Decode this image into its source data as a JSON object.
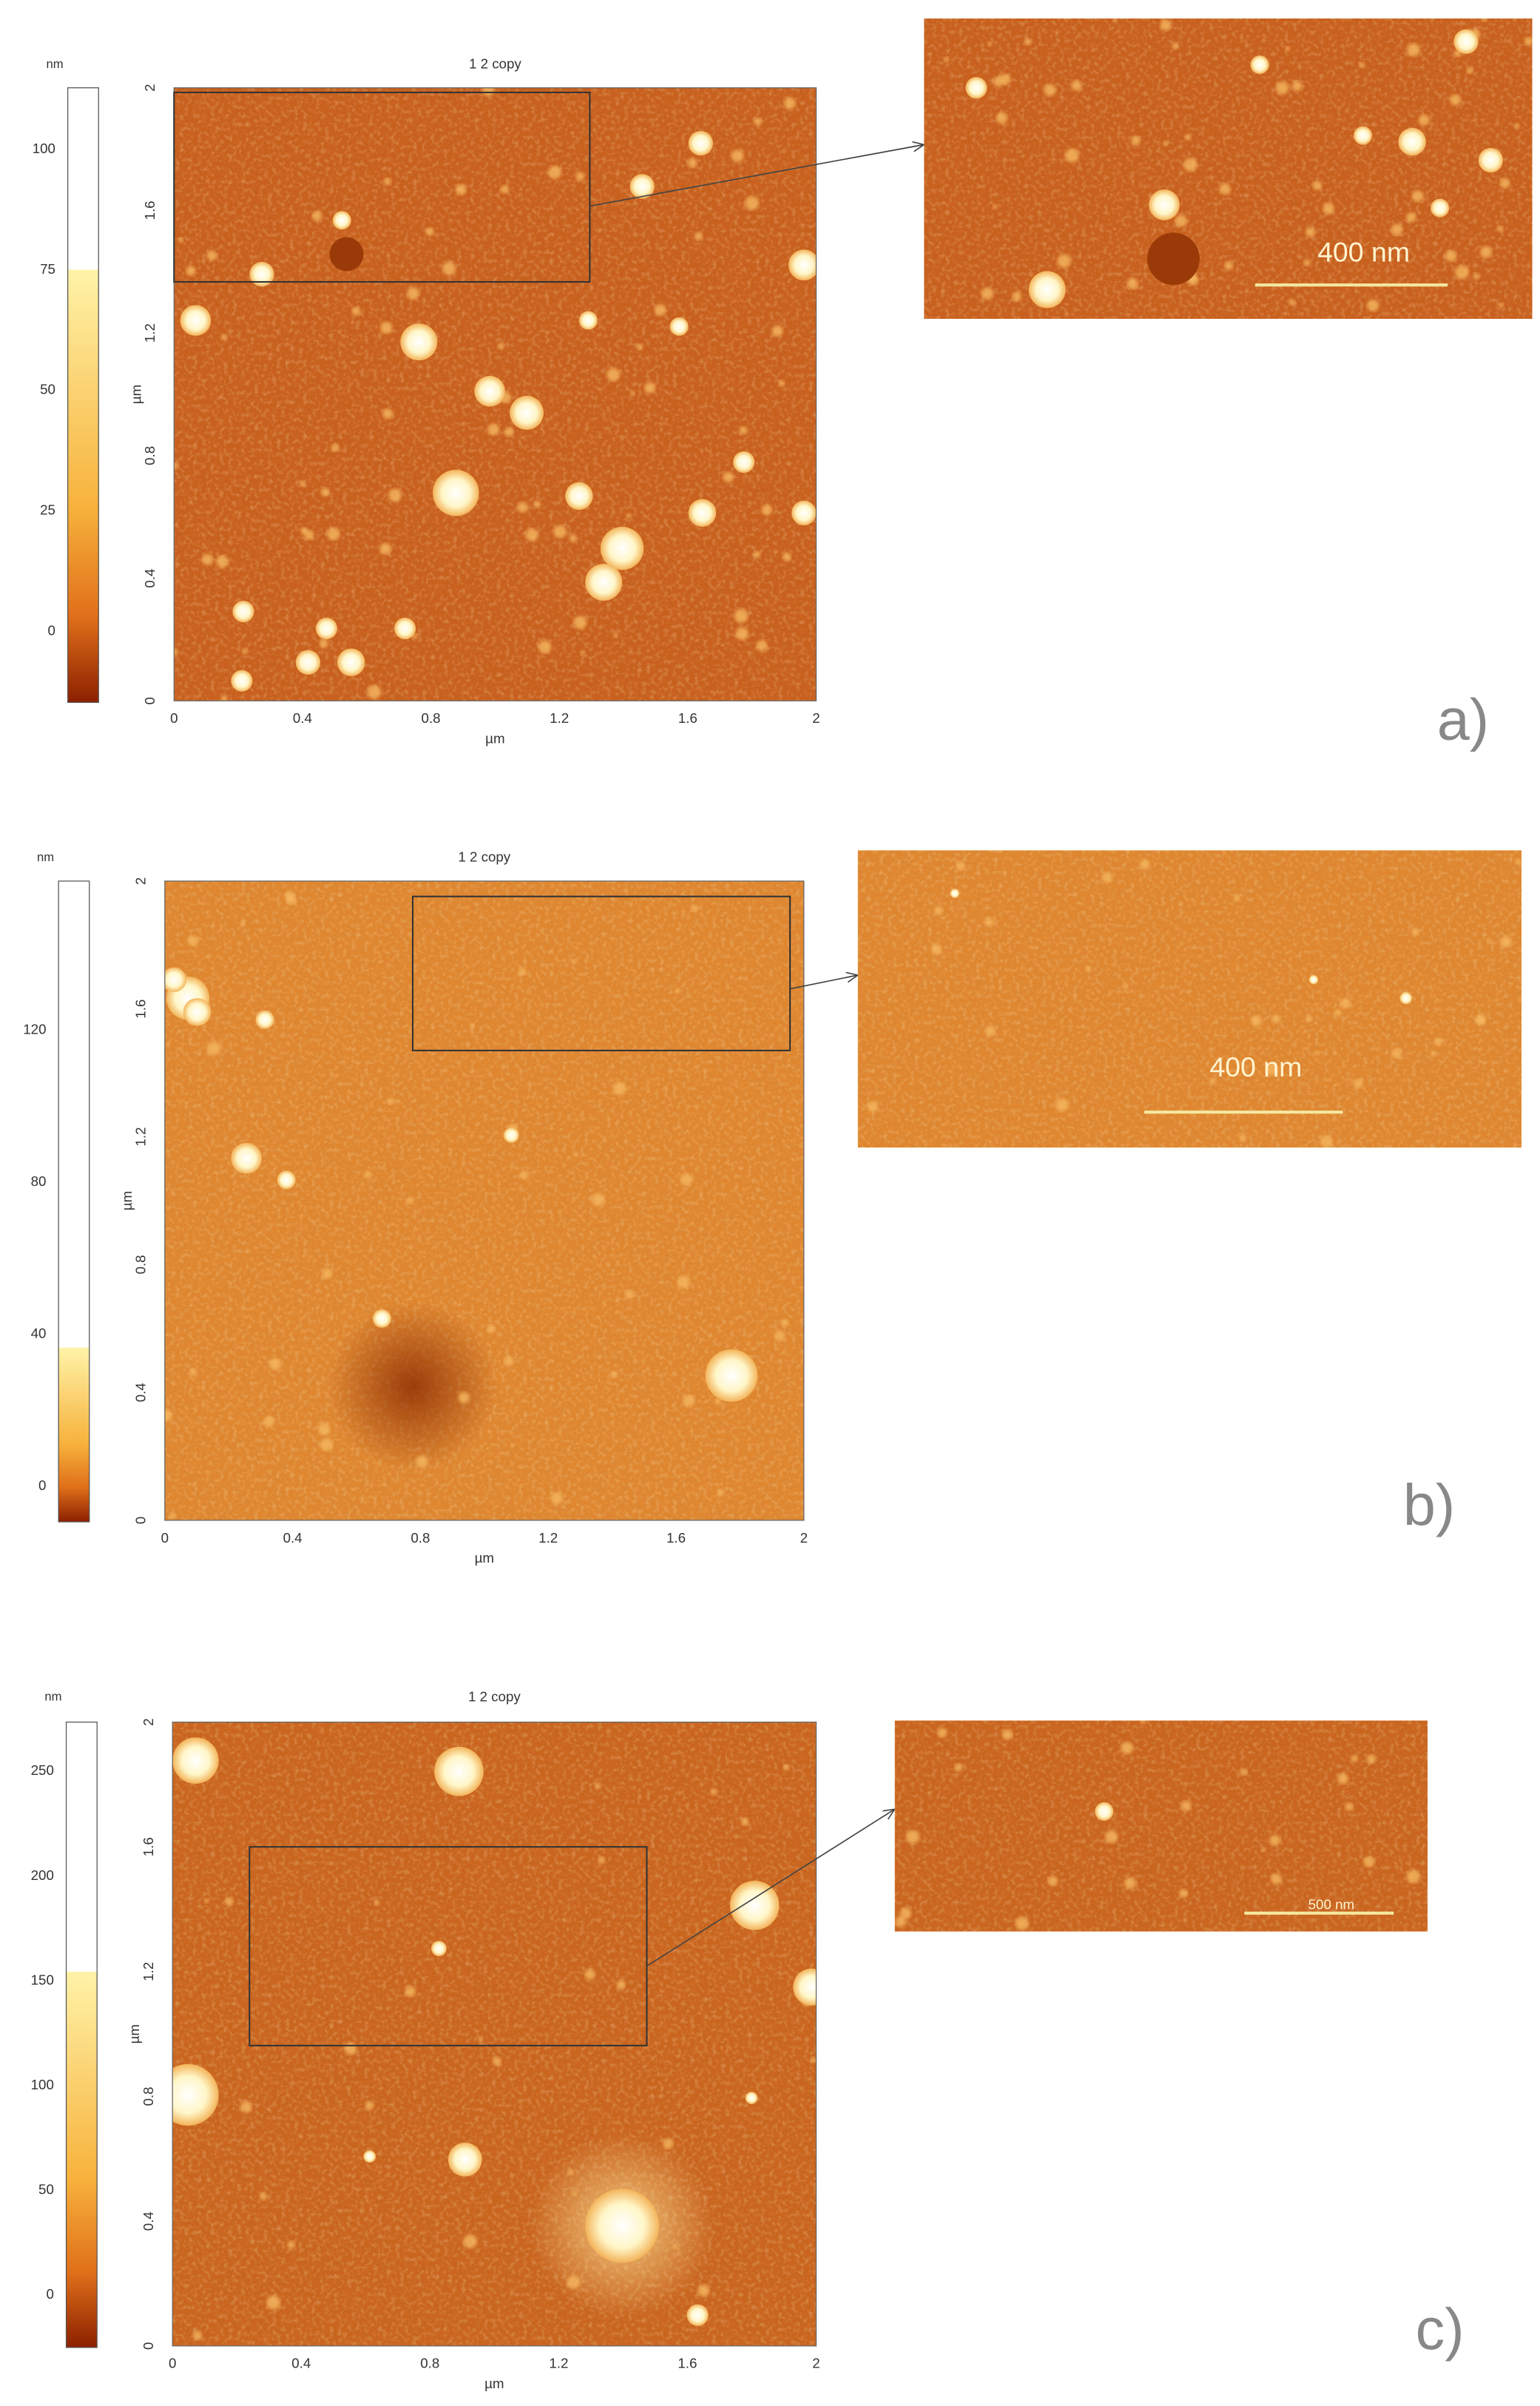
{
  "panels": [
    {
      "label": "a)",
      "title": "1 2 copy",
      "colorbar": {
        "unit": "nm",
        "ticks": [
          100,
          75,
          50,
          25,
          0
        ]
      },
      "x_axis": {
        "label": "µm",
        "ticks": [
          0,
          0.4,
          0.8,
          1.2,
          1.6,
          2
        ]
      },
      "y_axis": {
        "label": "µm",
        "ticks": [
          0,
          0.4,
          0.8,
          1.2,
          1.6,
          2
        ]
      },
      "scale_bar": "400 nm"
    },
    {
      "label": "b)",
      "title": "1 2 copy",
      "colorbar": {
        "unit": "nm",
        "ticks": [
          120,
          80,
          40,
          0
        ]
      },
      "x_axis": {
        "label": "µm",
        "ticks": [
          0,
          0.4,
          0.8,
          1.2,
          1.6,
          2
        ]
      },
      "y_axis": {
        "label": "µm",
        "ticks": [
          0,
          0.4,
          0.8,
          1.2,
          1.6,
          2
        ]
      },
      "scale_bar": "400 nm"
    },
    {
      "label": "c)",
      "title": "1 2 copy",
      "colorbar": {
        "unit": "nm",
        "ticks": [
          250,
          200,
          150,
          100,
          50,
          0
        ]
      },
      "x_axis": {
        "label": "µm",
        "ticks": [
          0,
          0.4,
          0.8,
          1.2,
          1.6,
          2
        ]
      },
      "y_axis": {
        "label": "µm",
        "ticks": [
          0,
          0.4,
          0.8,
          1.2,
          1.6,
          2
        ]
      },
      "scale_bar": "500 nm"
    }
  ]
}
